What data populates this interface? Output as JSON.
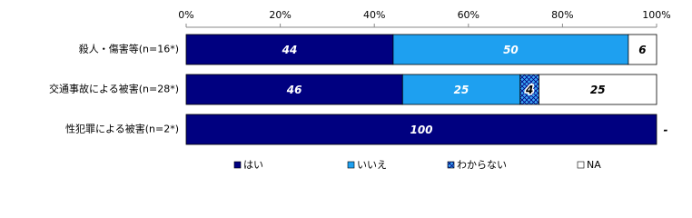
{
  "chart_data": {
    "type": "stacked-bar-horizontal",
    "categories": [
      "殺人・傷害等(n=16*)",
      "交通事故による被害(n=28*)",
      "性犯罪による被害(n=2*)"
    ],
    "series": [
      {
        "name": "はい",
        "color": "#000080",
        "values": [
          44,
          46,
          100
        ]
      },
      {
        "name": "いいえ",
        "color": "#1ea0f0",
        "values": [
          50,
          25,
          null
        ]
      },
      {
        "name": "わからない",
        "color": "#3aa8f4",
        "values": [
          null,
          4,
          null
        ],
        "hatch": true
      },
      {
        "name": "NA",
        "color": "#ffffff",
        "values": [
          6,
          25,
          0
        ],
        "value_labels": [
          "6",
          "25",
          "-"
        ]
      }
    ],
    "xlim": [
      0,
      100
    ],
    "xticks": [
      {
        "value": 0,
        "label": "0%"
      },
      {
        "value": 20,
        "label": "20%"
      },
      {
        "value": 40,
        "label": "40%"
      },
      {
        "value": 60,
        "label": "60%"
      },
      {
        "value": 80,
        "label": "80%"
      },
      {
        "value": 100,
        "label": "100%"
      }
    ],
    "legend": "bottom"
  }
}
